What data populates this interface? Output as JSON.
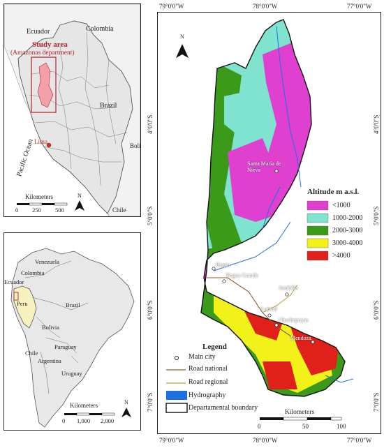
{
  "inset_peru": {
    "ecuador": "Ecuador",
    "colombia": "Colombia",
    "brazil": "Brazil",
    "bolivia": "Bolivia",
    "chile": "Chile",
    "pacific": "Pacific Ocean",
    "lima": "Lima",
    "study_area": "Study area",
    "study_sub": "(Amazonas department)",
    "scale_title": "Kilometers",
    "scale_ticks": [
      "0",
      "250",
      "500"
    ],
    "north": "N",
    "colors": {
      "study": "#f2a0a8",
      "study_border": "#b02030",
      "lima_dot": "#c0392b"
    }
  },
  "inset_sa": {
    "venezuela": "Venezuela",
    "colombia": "Colombia",
    "ecuador": "Ecuador",
    "peru": "Peru",
    "brazil": "Brazil",
    "bolivia": "Bolivia",
    "paraguay": "Paraguay",
    "chile": "Chile",
    "argentina": "Argentina",
    "uruguay": "Uruguay",
    "scale_title": "Kilometers",
    "scale_ticks": [
      "0",
      "1,000",
      "2,000"
    ],
    "north": "N",
    "colors": {
      "land": "#e8e8e8",
      "peru": "#f6f1bf"
    }
  },
  "main_map": {
    "lon_labels": [
      "79°0'0\"W",
      "78°0'0\"W",
      "77°0'0\"W"
    ],
    "lat_labels": [
      "4°0'0\"S",
      "5°0'0\"S",
      "6°0'0\"S",
      "7°0'0\"S"
    ],
    "north": "N",
    "cities": [
      "Santa María de Nieva",
      "Bagua",
      "Bagua Grande",
      "Jumbilla",
      "Lamud",
      "Chachapoyas",
      "Mendoza"
    ],
    "altitude_title": "Altitude m a.s.l.",
    "altitude_classes": [
      {
        "label": "<1000",
        "color": "#e040d0"
      },
      {
        "label": "1000-2000",
        "color": "#7fe3d0"
      },
      {
        "label": "2000-3000",
        "color": "#3c9a1a"
      },
      {
        "label": "3000-4000",
        "color": "#f2f21a"
      },
      {
        "label": ">4000",
        "color": "#e0201a"
      }
    ],
    "legend_title": "Legend",
    "legend_items": [
      "Main city",
      "Road national",
      "Road regional",
      "Hydrography",
      "Departamental boundary"
    ],
    "legend_colors": {
      "road_national": "#8b5a2b",
      "road_regional": "#b5a23a",
      "hydro": "#1e6fe0"
    },
    "scale_title": "Kilometers",
    "scale_ticks": [
      "0",
      "50",
      "100"
    ]
  }
}
